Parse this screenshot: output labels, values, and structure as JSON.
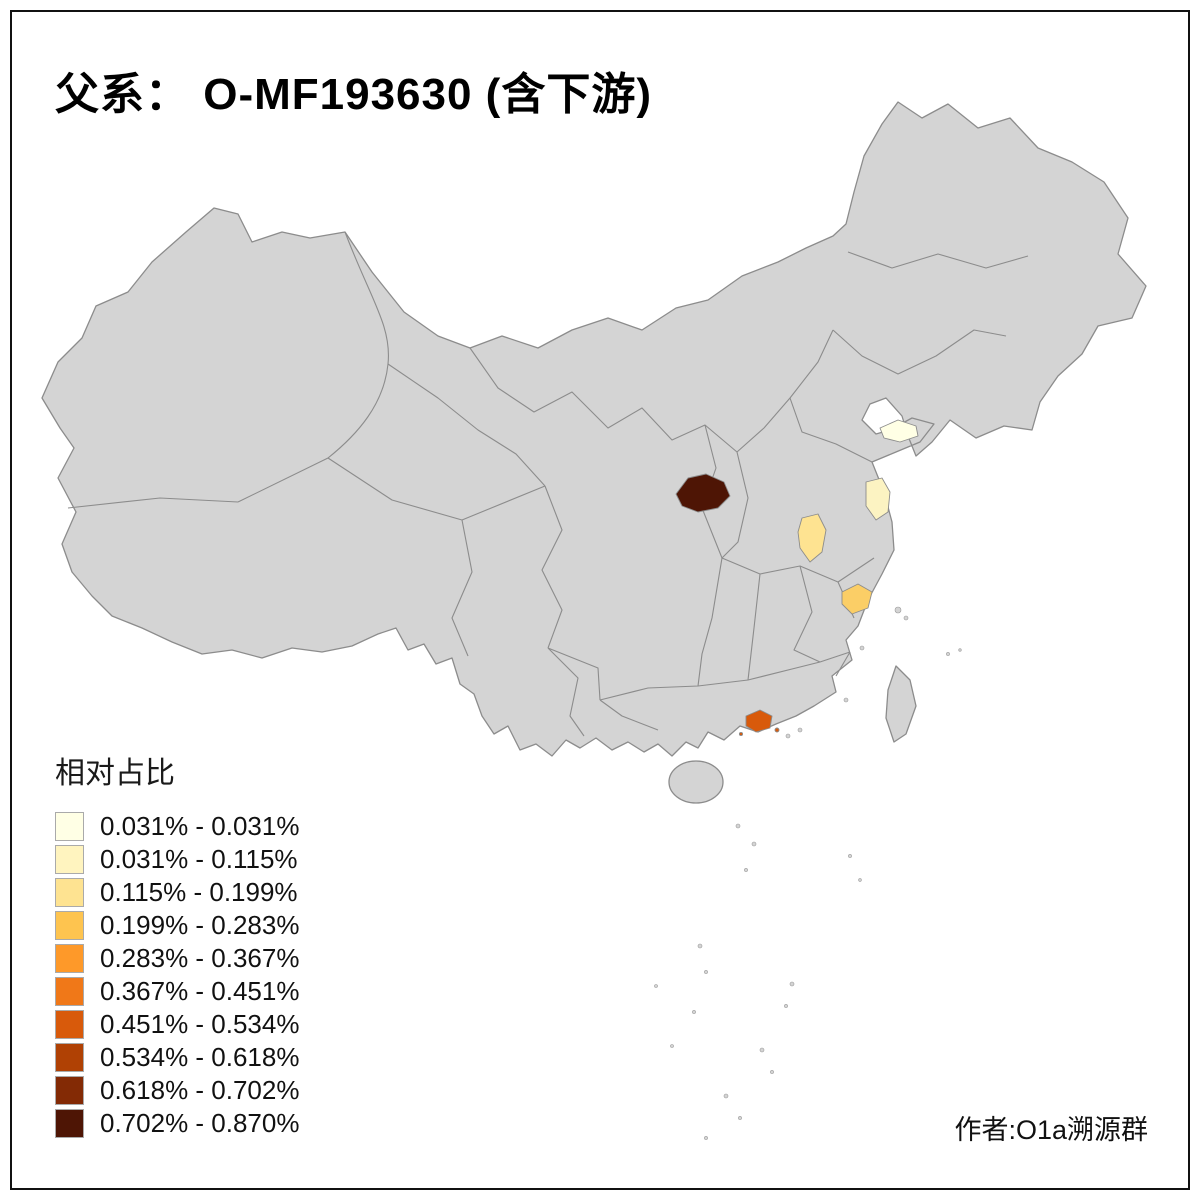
{
  "title": "父系： O-MF193630 (含下游)",
  "credit": "作者:O1a溯源群",
  "legend": {
    "title": "相对占比",
    "items": [
      {
        "label": "0.031% - 0.031%",
        "color": "#FFFFE5"
      },
      {
        "label": "0.031% - 0.115%",
        "color": "#FFF4BF"
      },
      {
        "label": "0.115% - 0.199%",
        "color": "#FEE391"
      },
      {
        "label": "0.199% - 0.283%",
        "color": "#FEC44F"
      },
      {
        "label": "0.283% - 0.367%",
        "color": "#FE9929"
      },
      {
        "label": "0.367% - 0.451%",
        "color": "#F07818"
      },
      {
        "label": "0.451% - 0.534%",
        "color": "#D85A0B"
      },
      {
        "label": "0.534% - 0.618%",
        "color": "#B04104"
      },
      {
        "label": "0.618% - 0.702%",
        "color": "#832A05"
      },
      {
        "label": "0.702% - 0.870%",
        "color": "#4E1505"
      }
    ]
  },
  "map": {
    "background_color": "#FFFFFF",
    "land_color": "#D4D4D4",
    "border_color": "#8C8C8C",
    "highlighted_regions": [
      {
        "id": "region-central-shaanxi",
        "legend_class": 10,
        "range": "0.702% - 0.870%",
        "color": "#4E1505"
      },
      {
        "id": "region-north-shandong",
        "legend_class": 1,
        "range": "0.031% - 0.031%",
        "color": "#FFFFE5"
      },
      {
        "id": "region-east-jiangsu",
        "legend_class": 2,
        "range": "0.031% - 0.115%",
        "color": "#FCF3C2"
      },
      {
        "id": "region-central-anhui",
        "legend_class": 3,
        "range": "0.115% - 0.199%",
        "color": "#FEE391"
      },
      {
        "id": "region-north-zhejiang",
        "legend_class": 4,
        "range": "0.199% - 0.283%",
        "color": "#FBCE66"
      },
      {
        "id": "region-pearl-guangdong",
        "legend_class": 7,
        "range": "0.451% - 0.534%",
        "color": "#D85A0B"
      }
    ]
  }
}
